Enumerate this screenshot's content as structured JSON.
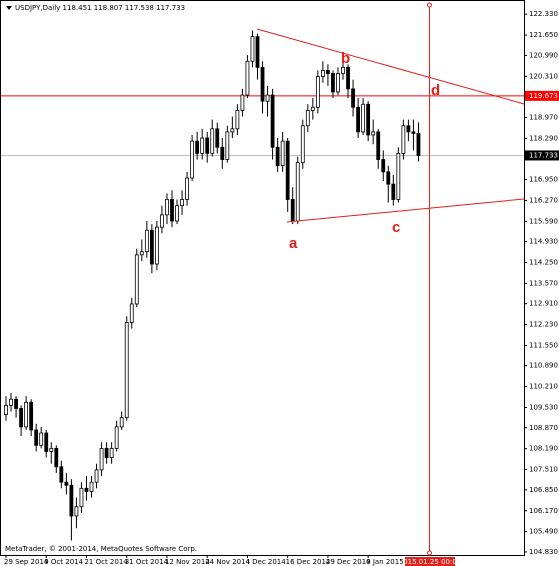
{
  "chart_data": {
    "type": "candlestick",
    "title": "USDJPY,Daily",
    "categories": [
      "29 Sep 2014",
      null,
      null,
      null,
      null,
      null,
      null,
      null,
      "9 Oct 2014",
      null,
      null,
      null,
      null,
      null,
      null,
      null,
      "21 Oct 2014",
      null,
      null,
      null,
      null,
      null,
      null,
      null,
      "31 Oct 2014",
      null,
      null,
      null,
      null,
      null,
      null,
      null,
      "12 Nov 2014",
      null,
      null,
      null,
      null,
      null,
      null,
      null,
      "24 Nov 2014",
      null,
      null,
      null,
      null,
      null,
      null,
      null,
      "4 Dec 2014",
      null,
      null,
      null,
      null,
      null,
      null,
      null,
      "16 Dec 2014",
      null,
      null,
      null,
      null,
      null,
      null,
      null,
      "29 Dec 2014",
      null,
      null,
      null,
      null,
      null,
      null,
      null,
      "9 Jan 2015",
      null,
      null,
      null,
      null,
      null,
      null,
      null,
      null,
      null,
      null
    ],
    "open": [
      109.3,
      109.6,
      109.8,
      109.5,
      108.9,
      109.7,
      108.8,
      108.3,
      108.7,
      108.1,
      108.2,
      107.6,
      107.1,
      107.0,
      106.0,
      106.3,
      106.9,
      106.8,
      107.1,
      107.5,
      108.2,
      107.9,
      108.2,
      108.9,
      109.2,
      112.3,
      112.9,
      114.5,
      114.6,
      115.3,
      114.2,
      115.4,
      115.8,
      116.3,
      115.6,
      116.1,
      116.3,
      117.0,
      118.2,
      117.8,
      118.3,
      117.8,
      118.6,
      118.0,
      117.6,
      118.5,
      118.6,
      119.2,
      119.7,
      120.8,
      121.6,
      120.6,
      119.5,
      119.7,
      118.0,
      117.4,
      118.2,
      116.3,
      115.6,
      117.5,
      118.7,
      119.2,
      119.3,
      120.3,
      120.5,
      120.4,
      119.8,
      120.4,
      120.6,
      119.9,
      119.3,
      118.5,
      119.4,
      118.4,
      118.5,
      117.6,
      117.2,
      116.8,
      116.3,
      117.8,
      118.7,
      118.5,
      118.451
    ],
    "high": [
      109.9,
      110.0,
      109.9,
      109.6,
      109.9,
      109.8,
      109.0,
      108.9,
      108.8,
      108.4,
      108.3,
      107.8,
      107.4,
      107.2,
      106.6,
      107.1,
      107.3,
      107.3,
      107.7,
      108.4,
      108.4,
      108.4,
      109.1,
      109.4,
      112.5,
      113.1,
      114.7,
      115.0,
      115.6,
      115.5,
      115.6,
      116.1,
      116.5,
      116.6,
      116.3,
      116.6,
      117.2,
      118.4,
      118.5,
      118.6,
      118.5,
      118.9,
      118.8,
      118.3,
      118.7,
      119.0,
      119.4,
      119.9,
      121.0,
      121.8,
      121.7,
      120.8,
      120.0,
      119.9,
      118.3,
      118.5,
      118.3,
      116.7,
      117.7,
      118.9,
      119.4,
      119.6,
      120.5,
      120.8,
      120.7,
      120.5,
      120.6,
      120.8,
      120.7,
      120.2,
      119.6,
      119.6,
      119.5,
      118.9,
      118.6,
      117.9,
      117.4,
      117.1,
      118.0,
      118.9,
      118.9,
      118.9,
      118.807
    ],
    "low": [
      109.1,
      109.4,
      109.2,
      108.6,
      108.8,
      108.6,
      108.1,
      108.2,
      107.9,
      107.7,
      107.4,
      106.9,
      106.7,
      105.2,
      105.6,
      106.1,
      106.5,
      106.6,
      106.9,
      107.3,
      107.7,
      107.7,
      108.1,
      108.8,
      109.1,
      112.1,
      112.8,
      114.3,
      114.4,
      113.9,
      114.0,
      115.2,
      115.5,
      115.4,
      115.5,
      115.8,
      116.1,
      116.9,
      117.6,
      117.6,
      117.5,
      117.7,
      117.8,
      117.3,
      117.5,
      118.3,
      118.4,
      119.0,
      119.6,
      120.6,
      120.2,
      119.1,
      119.0,
      117.6,
      117.2,
      117.2,
      115.9,
      115.5,
      115.5,
      117.3,
      118.5,
      118.9,
      119.1,
      120.1,
      120.0,
      119.6,
      119.7,
      120.2,
      119.6,
      119.0,
      118.3,
      118.4,
      118.2,
      118.1,
      117.3,
      116.9,
      116.2,
      116.1,
      116.2,
      117.6,
      118.2,
      117.9,
      117.538
    ],
    "close": [
      109.6,
      109.8,
      109.5,
      108.9,
      109.7,
      108.8,
      108.3,
      108.7,
      108.1,
      108.2,
      107.6,
      107.1,
      107.0,
      106.0,
      106.3,
      106.9,
      106.8,
      107.1,
      107.5,
      108.2,
      107.9,
      108.2,
      108.9,
      109.2,
      112.3,
      112.9,
      114.5,
      114.6,
      115.3,
      114.2,
      115.4,
      115.8,
      116.3,
      115.6,
      116.1,
      116.3,
      117.0,
      118.2,
      117.8,
      118.3,
      117.8,
      118.6,
      118.0,
      117.6,
      118.5,
      118.6,
      119.2,
      119.7,
      120.8,
      121.6,
      120.6,
      119.5,
      119.7,
      118.0,
      117.4,
      118.2,
      116.3,
      115.6,
      117.5,
      118.7,
      119.2,
      119.3,
      120.3,
      120.5,
      120.4,
      119.8,
      120.4,
      120.6,
      119.9,
      119.3,
      118.5,
      119.4,
      118.4,
      118.5,
      117.6,
      117.2,
      116.8,
      116.3,
      117.8,
      118.7,
      118.5,
      118.451,
      117.733
    ],
    "up_color": "#ffffff",
    "down_color": "#000000",
    "ylim": [
      104.73,
      122.76
    ],
    "yticks": [
      {
        "value": 104.83,
        "label": "104.830"
      },
      {
        "value": 105.49,
        "label": "105.490"
      },
      {
        "value": 106.17,
        "label": "106.170"
      },
      {
        "value": 106.85,
        "label": "106.850"
      },
      {
        "value": 107.51,
        "label": "107.510"
      },
      {
        "value": 108.19,
        "label": "108.190"
      },
      {
        "value": 108.87,
        "label": "108.870"
      },
      {
        "value": 109.53,
        "label": "109.530"
      },
      {
        "value": 110.21,
        "label": "110.210"
      },
      {
        "value": 110.89,
        "label": "110.890"
      },
      {
        "value": 111.55,
        "label": "111.550"
      },
      {
        "value": 112.23,
        "label": "112.230"
      },
      {
        "value": 112.91,
        "label": "112.910"
      },
      {
        "value": 113.57,
        "label": "113.570"
      },
      {
        "value": 114.25,
        "label": "114.250"
      },
      {
        "value": 114.93,
        "label": "114.930"
      },
      {
        "value": 115.59,
        "label": "115.590"
      },
      {
        "value": 116.27,
        "label": "116.270"
      },
      {
        "value": 116.95,
        "label": "116.950"
      },
      {
        "value": 118.29,
        "label": "118.290"
      },
      {
        "value": 118.97,
        "label": "118.970"
      },
      {
        "value": 120.31,
        "label": "120.310"
      },
      {
        "value": 120.99,
        "label": "120.990"
      },
      {
        "value": 121.65,
        "label": "121.650"
      },
      {
        "value": 122.33,
        "label": "122.330"
      }
    ],
    "hline": {
      "value": 119.673,
      "color": "#ff0000"
    },
    "vline_label": "2015.01.25 00:00",
    "annotations": [
      "a",
      "b",
      "c",
      "d"
    ],
    "footer": "MetaTrader, © 2001-2014, MetaQuotes Software Corp."
  }
}
